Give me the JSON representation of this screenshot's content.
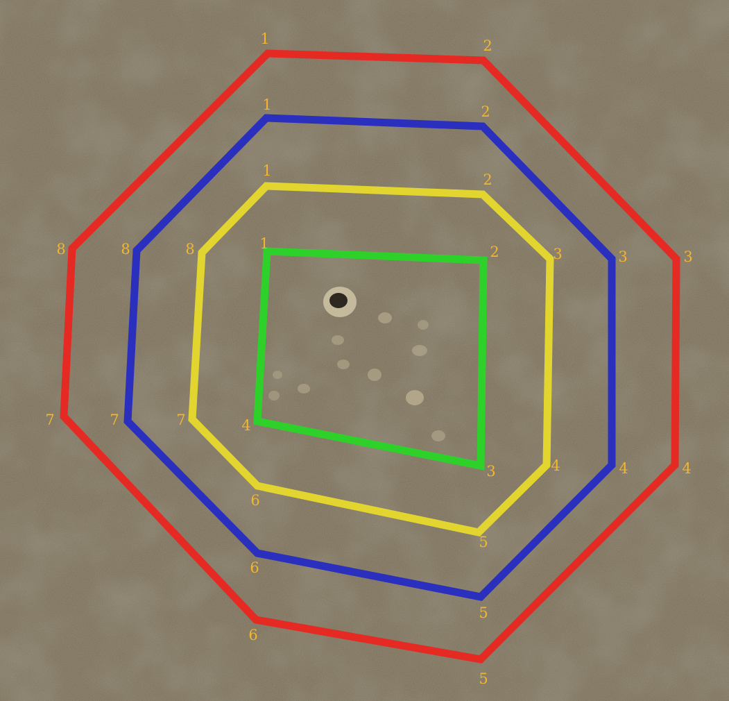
{
  "colors": {
    "background": "#7a6f5a",
    "ground_light": "#8f846c",
    "ground_dark": "#5e5645",
    "label": "#f2b630",
    "crater": "#c8bd9e"
  },
  "polygons": [
    {
      "color": "#e52a24",
      "vertices": [
        {
          "label": "1"
        },
        {
          "label": "2"
        },
        {
          "label": "3"
        },
        {
          "label": "4"
        },
        {
          "label": "5"
        },
        {
          "label": "6"
        },
        {
          "label": "7"
        },
        {
          "label": "8"
        }
      ]
    },
    {
      "color": "#2b2fbe",
      "vertices": [
        {
          "label": "1"
        },
        {
          "label": "2"
        },
        {
          "label": "3"
        },
        {
          "label": "4"
        },
        {
          "label": "5"
        },
        {
          "label": "6"
        },
        {
          "label": "7"
        },
        {
          "label": "8"
        }
      ]
    },
    {
      "color": "#e3d530",
      "vertices": [
        {
          "label": "1"
        },
        {
          "label": "2"
        },
        {
          "label": "3"
        },
        {
          "label": "4"
        },
        {
          "label": "5"
        },
        {
          "label": "6"
        },
        {
          "label": "7"
        },
        {
          "label": "8"
        }
      ]
    },
    {
      "color": "#2ed12a",
      "vertices": [
        {
          "label": "1"
        },
        {
          "label": "2"
        },
        {
          "label": "3"
        },
        {
          "label": "4"
        }
      ]
    }
  ]
}
